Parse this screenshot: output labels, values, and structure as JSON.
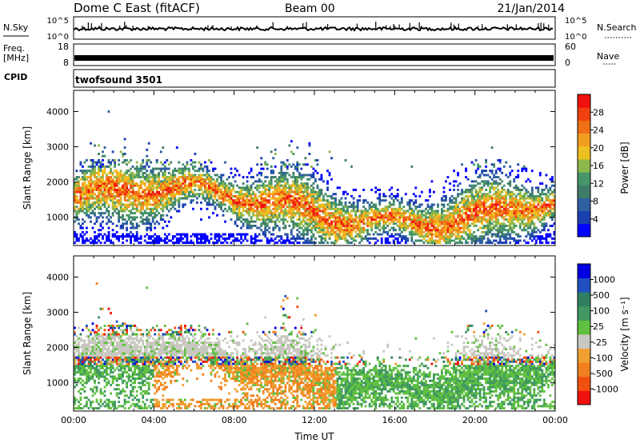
{
  "header": {
    "station": "Dome C East (fitACF)",
    "beam": "Beam 00",
    "date": "21/Jan/2014"
  },
  "top_panels": {
    "nsky_label": "N.Sky",
    "nsky_ticks": [
      "10^5",
      "10^0"
    ],
    "nsearch_label": "N.Search",
    "freq_label": "Freq.",
    "freq_unit": "[MHz]",
    "freq_ticks": [
      "18",
      "8"
    ],
    "nave_label": "Nave",
    "nave_ticks": [
      "60",
      "0"
    ],
    "cpid_label": "CPID",
    "cpid_value": "twofsound 3501"
  },
  "colors": {
    "power": [
      "#0000ff",
      "#1a3fb0",
      "#2e5fa0",
      "#3f7d6a",
      "#46966a",
      "#8fb84a",
      "#f0c020",
      "#f0a020",
      "#f07018",
      "#f04010",
      "#f01010"
    ],
    "velocity": [
      "#0000e0",
      "#2050c0",
      "#2f7f60",
      "#3f9860",
      "#60c040",
      "#c8c8c0",
      "#f0a030",
      "#f08020",
      "#f05010",
      "#f01010"
    ]
  },
  "chart_data": [
    {
      "type": "heatmap",
      "name": "power",
      "ylabel": "Slant Range [km]",
      "ylim": [
        200,
        4600
      ],
      "yticks": [
        1000,
        2000,
        3000,
        4000
      ],
      "xlim": [
        0,
        24
      ],
      "colorbar": {
        "label": "Power [dB]",
        "range": [
          0,
          32
        ],
        "ticks": [
          "4",
          "8",
          "12",
          "16",
          "20",
          "24",
          "28"
        ]
      }
    },
    {
      "type": "heatmap",
      "name": "velocity",
      "ylabel": "Slant Range [km]",
      "ylim": [
        200,
        4600
      ],
      "yticks": [
        1000,
        2000,
        3000,
        4000
      ],
      "xlim": [
        0,
        24
      ],
      "xlabel": "Time UT",
      "xticks": [
        "00:00",
        "04:00",
        "08:00",
        "12:00",
        "16:00",
        "20:00",
        "00:00"
      ],
      "colorbar": {
        "label": "Velocity [m s⁻¹]",
        "ticks": [
          "1000",
          "500",
          "100",
          "25",
          "-25",
          "-100",
          "-500",
          "-1000"
        ]
      }
    }
  ]
}
